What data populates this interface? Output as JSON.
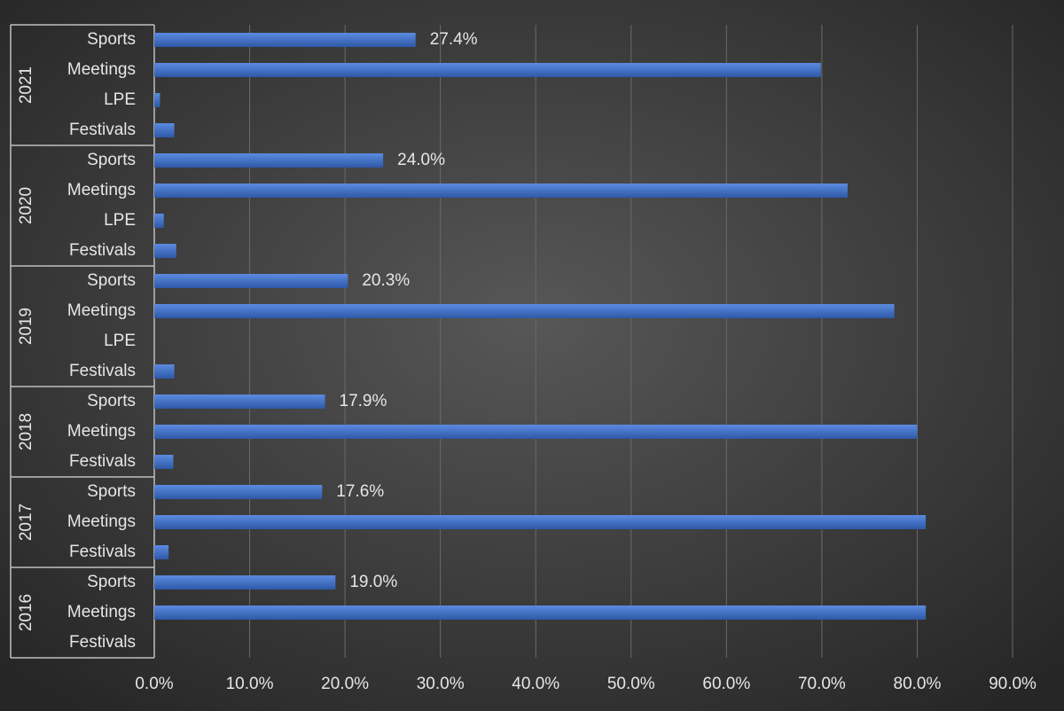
{
  "chart_data": {
    "type": "bar",
    "orientation": "horizontal",
    "color": "#4472c4",
    "grid": true,
    "xlim": [
      0,
      90
    ],
    "xticks": [
      {
        "value": 0,
        "label": "0.0%"
      },
      {
        "value": 10,
        "label": "10.0%"
      },
      {
        "value": 20,
        "label": "20.0%"
      },
      {
        "value": 30,
        "label": "30.0%"
      },
      {
        "value": 40,
        "label": "40.0%"
      },
      {
        "value": 50,
        "label": "50.0%"
      },
      {
        "value": 60,
        "label": "60.0%"
      },
      {
        "value": 70,
        "label": "70.0%"
      },
      {
        "value": 80,
        "label": "80.0%"
      },
      {
        "value": 90,
        "label": "90.0%"
      }
    ],
    "groups": [
      {
        "name": "2021",
        "categories": [
          "Sports",
          "Meetings",
          "LPE",
          "Festivals"
        ],
        "values": [
          27.4,
          69.9,
          0.6,
          2.1
        ],
        "value_labels": [
          "27.4%",
          null,
          null,
          null
        ]
      },
      {
        "name": "2020",
        "categories": [
          "Sports",
          "Meetings",
          "LPE",
          "Festivals"
        ],
        "values": [
          24.0,
          72.7,
          1.0,
          2.3
        ],
        "value_labels": [
          "24.0%",
          null,
          null,
          null
        ]
      },
      {
        "name": "2019",
        "categories": [
          "Sports",
          "Meetings",
          "LPE",
          "Festivals"
        ],
        "values": [
          20.3,
          77.6,
          0,
          2.1
        ],
        "value_labels": [
          "20.3%",
          null,
          null,
          null
        ]
      },
      {
        "name": "2018",
        "categories": [
          "Sports",
          "Meetings",
          "Festivals"
        ],
        "values": [
          17.9,
          80.0,
          2.0
        ],
        "value_labels": [
          "17.9%",
          null,
          null
        ]
      },
      {
        "name": "2017",
        "categories": [
          "Sports",
          "Meetings",
          "Festivals"
        ],
        "values": [
          17.6,
          80.9,
          1.5
        ],
        "value_labels": [
          "17.6%",
          null,
          null
        ]
      },
      {
        "name": "2016",
        "categories": [
          "Sports",
          "Meetings",
          "Festivals"
        ],
        "values": [
          19.0,
          80.9,
          0
        ],
        "value_labels": [
          "19.0%",
          null,
          null
        ]
      }
    ]
  }
}
